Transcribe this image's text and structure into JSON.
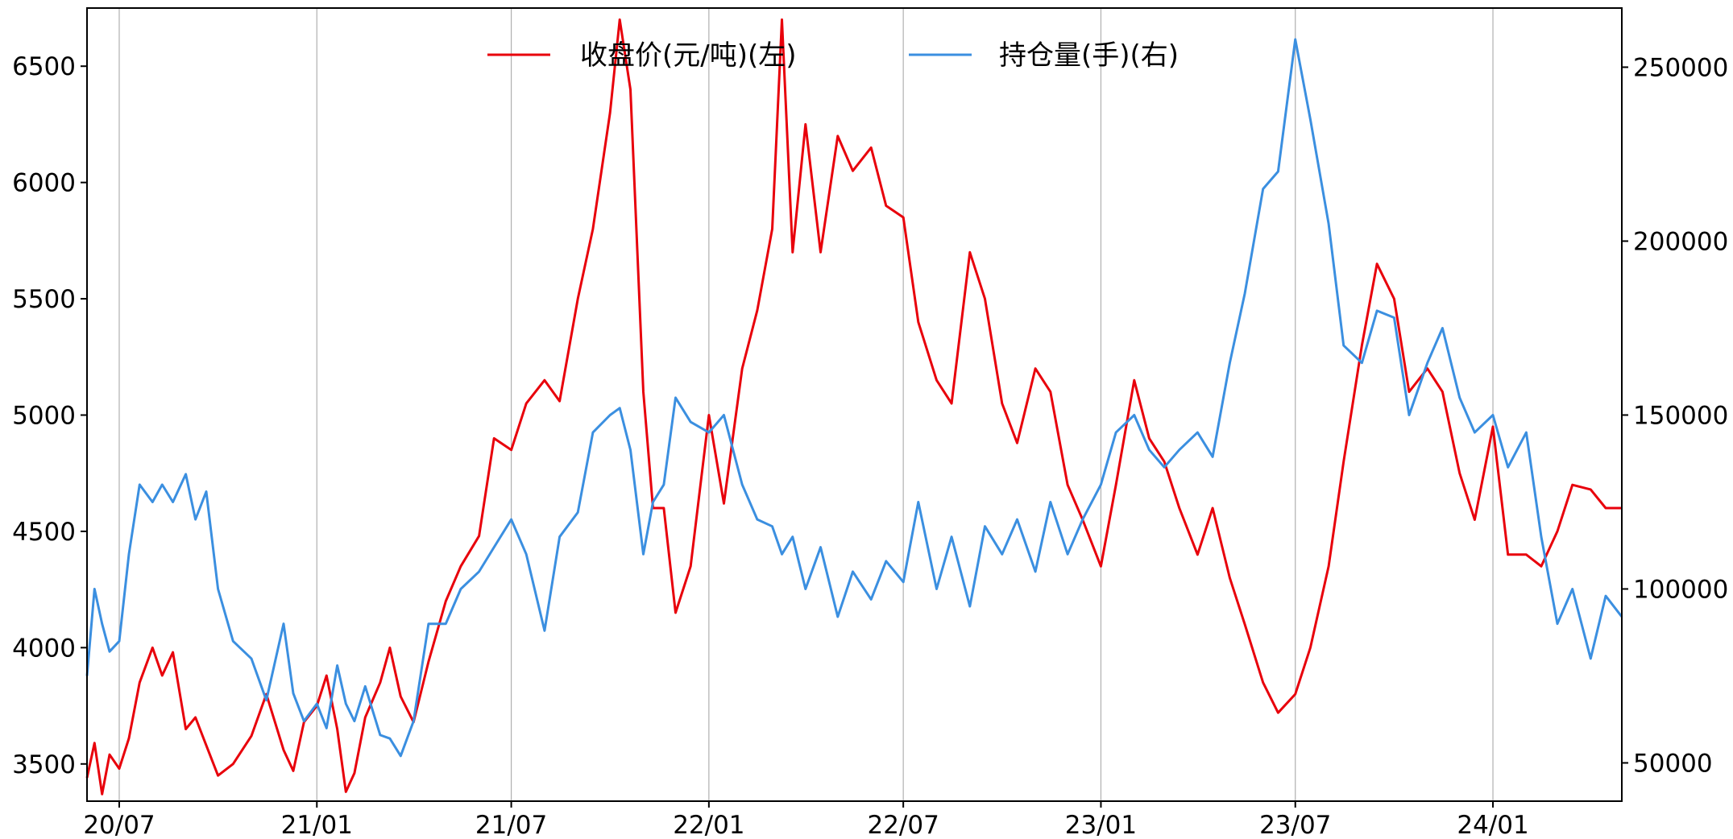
{
  "chart_data": {
    "type": "line",
    "title": "",
    "xlabel": "",
    "ylabel_left": "",
    "ylabel_right": "",
    "x_ticks": [
      "20/07",
      "21/01",
      "21/07",
      "22/01",
      "22/07",
      "23/01",
      "23/07",
      "24/01"
    ],
    "x_tick_dates": [
      "2020-07-01",
      "2021-01-01",
      "2021-07-01",
      "2022-01-01",
      "2022-07-01",
      "2023-01-01",
      "2023-07-01",
      "2024-01-01"
    ],
    "x_range": [
      "2020-06-01",
      "2024-04-30"
    ],
    "y_left_ticks": [
      3500,
      4000,
      4500,
      5000,
      5500,
      6000,
      6500
    ],
    "y_left_range": [
      3340,
      6750
    ],
    "y_right_ticks": [
      50000,
      100000,
      150000,
      200000,
      250000
    ],
    "y_right_range": [
      39000,
      267000
    ],
    "grid": "vertical",
    "legend_placement": "top-center",
    "series": [
      {
        "name": "收盘价(元/吨)(左)",
        "axis": "left",
        "color": "#e8000b",
        "points": [
          [
            "2020-06-01",
            3440
          ],
          [
            "2020-06-08",
            3590
          ],
          [
            "2020-06-15",
            3370
          ],
          [
            "2020-06-22",
            3540
          ],
          [
            "2020-07-01",
            3480
          ],
          [
            "2020-07-10",
            3610
          ],
          [
            "2020-07-20",
            3850
          ],
          [
            "2020-08-01",
            4000
          ],
          [
            "2020-08-10",
            3880
          ],
          [
            "2020-08-20",
            3980
          ],
          [
            "2020-09-01",
            3650
          ],
          [
            "2020-09-10",
            3700
          ],
          [
            "2020-09-20",
            3580
          ],
          [
            "2020-10-01",
            3450
          ],
          [
            "2020-10-15",
            3500
          ],
          [
            "2020-11-01",
            3620
          ],
          [
            "2020-11-15",
            3800
          ],
          [
            "2020-12-01",
            3560
          ],
          [
            "2020-12-10",
            3470
          ],
          [
            "2020-12-20",
            3680
          ],
          [
            "2021-01-01",
            3750
          ],
          [
            "2021-01-10",
            3880
          ],
          [
            "2021-01-20",
            3650
          ],
          [
            "2021-01-28",
            3380
          ],
          [
            "2021-02-05",
            3460
          ],
          [
            "2021-02-15",
            3700
          ],
          [
            "2021-03-01",
            3850
          ],
          [
            "2021-03-10",
            4000
          ],
          [
            "2021-03-20",
            3790
          ],
          [
            "2021-04-01",
            3680
          ],
          [
            "2021-04-15",
            3940
          ],
          [
            "2021-05-01",
            4200
          ],
          [
            "2021-05-15",
            4350
          ],
          [
            "2021-06-01",
            4480
          ],
          [
            "2021-06-15",
            4900
          ],
          [
            "2021-07-01",
            4850
          ],
          [
            "2021-07-15",
            5050
          ],
          [
            "2021-08-01",
            5150
          ],
          [
            "2021-08-15",
            5060
          ],
          [
            "2021-09-01",
            5500
          ],
          [
            "2021-09-15",
            5800
          ],
          [
            "2021-10-01",
            6300
          ],
          [
            "2021-10-10",
            6700
          ],
          [
            "2021-10-20",
            6400
          ],
          [
            "2021-11-01",
            5100
          ],
          [
            "2021-11-10",
            4600
          ],
          [
            "2021-11-20",
            4600
          ],
          [
            "2021-12-01",
            4150
          ],
          [
            "2021-12-15",
            4350
          ],
          [
            "2022-01-01",
            5000
          ],
          [
            "2022-01-15",
            4620
          ],
          [
            "2022-02-01",
            5200
          ],
          [
            "2022-02-15",
            5450
          ],
          [
            "2022-03-01",
            5800
          ],
          [
            "2022-03-10",
            6700
          ],
          [
            "2022-03-20",
            5700
          ],
          [
            "2022-04-01",
            6250
          ],
          [
            "2022-04-15",
            5700
          ],
          [
            "2022-05-01",
            6200
          ],
          [
            "2022-05-15",
            6050
          ],
          [
            "2022-06-01",
            6150
          ],
          [
            "2022-06-15",
            5900
          ],
          [
            "2022-07-01",
            5850
          ],
          [
            "2022-07-15",
            5400
          ],
          [
            "2022-08-01",
            5150
          ],
          [
            "2022-08-15",
            5050
          ],
          [
            "2022-09-01",
            5700
          ],
          [
            "2022-09-15",
            5500
          ],
          [
            "2022-10-01",
            5050
          ],
          [
            "2022-10-15",
            4880
          ],
          [
            "2022-11-01",
            5200
          ],
          [
            "2022-11-15",
            5100
          ],
          [
            "2022-12-01",
            4700
          ],
          [
            "2022-12-15",
            4550
          ],
          [
            "2023-01-01",
            4350
          ],
          [
            "2023-01-15",
            4700
          ],
          [
            "2023-02-01",
            5150
          ],
          [
            "2023-02-15",
            4900
          ],
          [
            "2023-03-01",
            4800
          ],
          [
            "2023-03-15",
            4600
          ],
          [
            "2023-04-01",
            4400
          ],
          [
            "2023-04-15",
            4600
          ],
          [
            "2023-05-01",
            4300
          ],
          [
            "2023-05-15",
            4100
          ],
          [
            "2023-06-01",
            3850
          ],
          [
            "2023-06-15",
            3720
          ],
          [
            "2023-07-01",
            3800
          ],
          [
            "2023-07-15",
            4000
          ],
          [
            "2023-08-01",
            4350
          ],
          [
            "2023-08-15",
            4800
          ],
          [
            "2023-09-01",
            5300
          ],
          [
            "2023-09-15",
            5650
          ],
          [
            "2023-10-01",
            5500
          ],
          [
            "2023-10-15",
            5100
          ],
          [
            "2023-11-01",
            5200
          ],
          [
            "2023-11-15",
            5100
          ],
          [
            "2023-12-01",
            4750
          ],
          [
            "2023-12-15",
            4550
          ],
          [
            "2024-01-01",
            4950
          ],
          [
            "2024-01-15",
            4400
          ],
          [
            "2024-02-01",
            4400
          ],
          [
            "2024-02-15",
            4350
          ],
          [
            "2024-03-01",
            4500
          ],
          [
            "2024-03-15",
            4700
          ],
          [
            "2024-04-01",
            4680
          ],
          [
            "2024-04-15",
            4600
          ],
          [
            "2024-04-30",
            4600
          ]
        ]
      },
      {
        "name": "持仓量(手)(右)",
        "axis": "right",
        "color": "#3b8fe0",
        "points": [
          [
            "2020-06-01",
            75000
          ],
          [
            "2020-06-08",
            100000
          ],
          [
            "2020-06-15",
            90000
          ],
          [
            "2020-06-22",
            82000
          ],
          [
            "2020-07-01",
            85000
          ],
          [
            "2020-07-10",
            110000
          ],
          [
            "2020-07-20",
            130000
          ],
          [
            "2020-08-01",
            125000
          ],
          [
            "2020-08-10",
            130000
          ],
          [
            "2020-08-20",
            125000
          ],
          [
            "2020-09-01",
            133000
          ],
          [
            "2020-09-10",
            120000
          ],
          [
            "2020-09-20",
            128000
          ],
          [
            "2020-10-01",
            100000
          ],
          [
            "2020-10-15",
            85000
          ],
          [
            "2020-11-01",
            80000
          ],
          [
            "2020-11-15",
            68000
          ],
          [
            "2020-12-01",
            90000
          ],
          [
            "2020-12-10",
            70000
          ],
          [
            "2020-12-20",
            62000
          ],
          [
            "2021-01-01",
            67000
          ],
          [
            "2021-01-10",
            60000
          ],
          [
            "2021-01-20",
            78000
          ],
          [
            "2021-01-28",
            67000
          ],
          [
            "2021-02-05",
            62000
          ],
          [
            "2021-02-15",
            72000
          ],
          [
            "2021-03-01",
            58000
          ],
          [
            "2021-03-10",
            57000
          ],
          [
            "2021-03-20",
            52000
          ],
          [
            "2021-04-01",
            62000
          ],
          [
            "2021-04-15",
            90000
          ],
          [
            "2021-05-01",
            90000
          ],
          [
            "2021-05-15",
            100000
          ],
          [
            "2021-06-01",
            105000
          ],
          [
            "2021-06-15",
            112000
          ],
          [
            "2021-07-01",
            120000
          ],
          [
            "2021-07-15",
            110000
          ],
          [
            "2021-08-01",
            88000
          ],
          [
            "2021-08-15",
            115000
          ],
          [
            "2021-09-01",
            122000
          ],
          [
            "2021-09-15",
            145000
          ],
          [
            "2021-10-01",
            150000
          ],
          [
            "2021-10-10",
            152000
          ],
          [
            "2021-10-20",
            140000
          ],
          [
            "2021-11-01",
            110000
          ],
          [
            "2021-11-10",
            125000
          ],
          [
            "2021-11-20",
            130000
          ],
          [
            "2021-12-01",
            155000
          ],
          [
            "2021-12-15",
            148000
          ],
          [
            "2022-01-01",
            145000
          ],
          [
            "2022-01-15",
            150000
          ],
          [
            "2022-02-01",
            130000
          ],
          [
            "2022-02-15",
            120000
          ],
          [
            "2022-03-01",
            118000
          ],
          [
            "2022-03-10",
            110000
          ],
          [
            "2022-03-20",
            115000
          ],
          [
            "2022-04-01",
            100000
          ],
          [
            "2022-04-15",
            112000
          ],
          [
            "2022-05-01",
            92000
          ],
          [
            "2022-05-15",
            105000
          ],
          [
            "2022-06-01",
            97000
          ],
          [
            "2022-06-15",
            108000
          ],
          [
            "2022-07-01",
            102000
          ],
          [
            "2022-07-15",
            125000
          ],
          [
            "2022-08-01",
            100000
          ],
          [
            "2022-08-15",
            115000
          ],
          [
            "2022-09-01",
            95000
          ],
          [
            "2022-09-15",
            118000
          ],
          [
            "2022-10-01",
            110000
          ],
          [
            "2022-10-15",
            120000
          ],
          [
            "2022-11-01",
            105000
          ],
          [
            "2022-11-15",
            125000
          ],
          [
            "2022-12-01",
            110000
          ],
          [
            "2022-12-15",
            120000
          ],
          [
            "2023-01-01",
            130000
          ],
          [
            "2023-01-15",
            145000
          ],
          [
            "2023-02-01",
            150000
          ],
          [
            "2023-02-15",
            140000
          ],
          [
            "2023-03-01",
            135000
          ],
          [
            "2023-03-15",
            140000
          ],
          [
            "2023-04-01",
            145000
          ],
          [
            "2023-04-15",
            138000
          ],
          [
            "2023-05-01",
            165000
          ],
          [
            "2023-05-15",
            185000
          ],
          [
            "2023-06-01",
            215000
          ],
          [
            "2023-06-15",
            220000
          ],
          [
            "2023-07-01",
            258000
          ],
          [
            "2023-07-15",
            235000
          ],
          [
            "2023-08-01",
            205000
          ],
          [
            "2023-08-15",
            170000
          ],
          [
            "2023-09-01",
            165000
          ],
          [
            "2023-09-15",
            180000
          ],
          [
            "2023-10-01",
            178000
          ],
          [
            "2023-10-15",
            150000
          ],
          [
            "2023-11-01",
            165000
          ],
          [
            "2023-11-15",
            175000
          ],
          [
            "2023-12-01",
            155000
          ],
          [
            "2023-12-15",
            145000
          ],
          [
            "2024-01-01",
            150000
          ],
          [
            "2024-01-15",
            135000
          ],
          [
            "2024-02-01",
            145000
          ],
          [
            "2024-02-15",
            115000
          ],
          [
            "2024-03-01",
            90000
          ],
          [
            "2024-03-15",
            100000
          ],
          [
            "2024-04-01",
            80000
          ],
          [
            "2024-04-15",
            98000
          ],
          [
            "2024-04-30",
            92000
          ]
        ]
      }
    ]
  }
}
